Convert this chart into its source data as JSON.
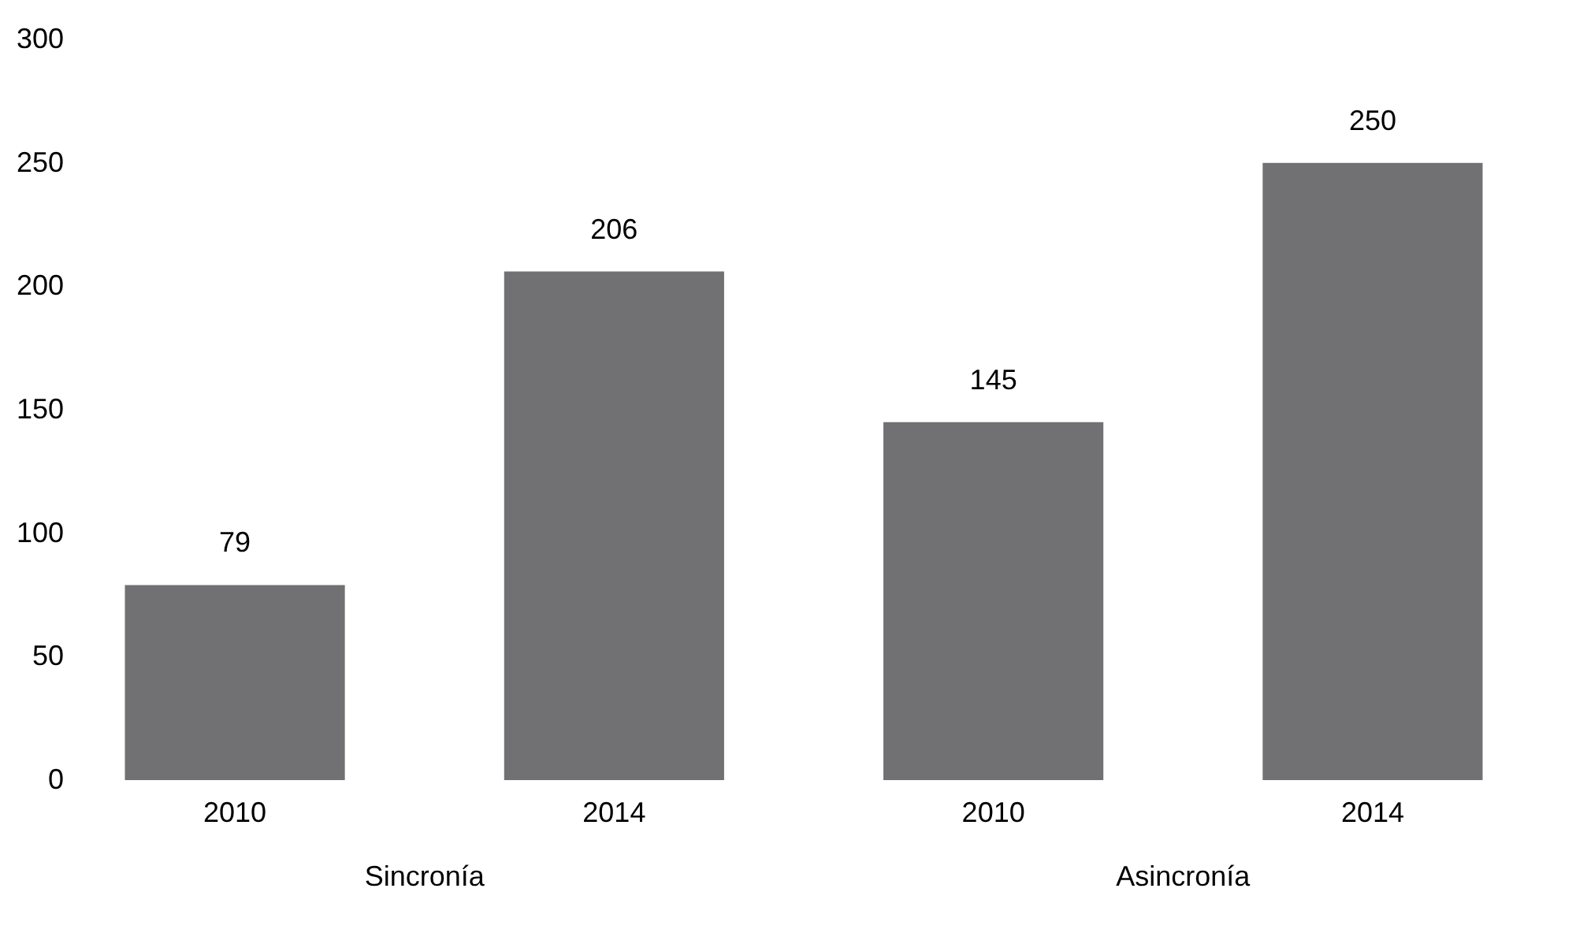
{
  "chart_data": {
    "type": "bar",
    "categories": [
      "2010",
      "2014",
      "2010",
      "2014"
    ],
    "values": [
      79,
      206,
      145,
      250
    ],
    "color": "#717174",
    "ylim": [
      0,
      300
    ],
    "yticks": [
      0,
      50,
      100,
      150,
      200,
      250,
      300
    ],
    "data_labels": true,
    "grid": false,
    "annotations": [
      "Sincronía",
      "Asincronía"
    ]
  }
}
